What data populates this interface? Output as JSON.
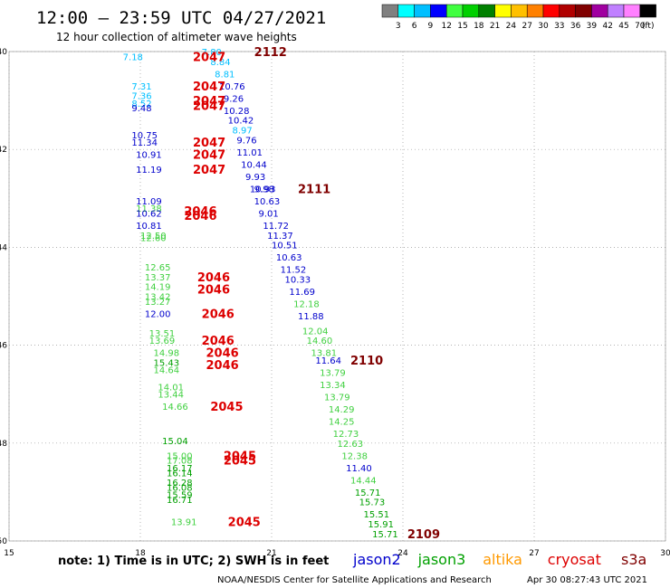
{
  "title": "12:00 — 23:59 UTC 04/27/2021",
  "subtitle": "12 hour collection of altimeter wave heights",
  "colorbar": {
    "colors": [
      "#808080",
      "#00ffff",
      "#00bfff",
      "#0000ff",
      "#40ff40",
      "#00d000",
      "#008000",
      "#ffff00",
      "#ffc000",
      "#ff8000",
      "#ff0000",
      "#b00000",
      "#800000",
      "#a000a0",
      "#c080ff",
      "#ff80ff",
      "#000000"
    ],
    "labels": [
      "3",
      "6",
      "9",
      "12",
      "15",
      "18",
      "21",
      "24",
      "27",
      "30",
      "33",
      "36",
      "39",
      "42",
      "45",
      "70",
      "(ft)"
    ]
  },
  "note": "note: 1) Time is in UTC; 2) SWH is in feet",
  "satellite_legend": [
    {
      "name": "jason2",
      "color": "#0000cc"
    },
    {
      "name": "jason3",
      "color": "#00a000"
    },
    {
      "name": "altika",
      "color": "#ff9900"
    },
    {
      "name": "cryosat",
      "color": "#dd0000"
    },
    {
      "name": "s3a",
      "color": "#800000"
    }
  ],
  "credit": "NOAA/NESDIS Center for Satellite Applications and Research",
  "timestamp": "Apr 30 08:27:43 UTC 2021",
  "chart_data": {
    "type": "scatter",
    "x_ticks": [
      "15",
      "18",
      "21",
      "24",
      "27",
      "30"
    ],
    "y_ticks": [
      "-40",
      "-42",
      "-44",
      "-46",
      "-48",
      "-50"
    ],
    "xlim": [
      15,
      30
    ],
    "ylim": [
      -50,
      -40
    ],
    "swh_points": [
      {
        "lon": 17.6,
        "lat": -40.1,
        "v": "7.18",
        "c": "#00bfff"
      },
      {
        "lon": 19.4,
        "lat": -40.0,
        "v": "7.80",
        "c": "#00bfff"
      },
      {
        "lon": 19.6,
        "lat": -40.2,
        "v": "8.84",
        "c": "#00bfff"
      },
      {
        "lon": 19.7,
        "lat": -40.45,
        "v": "8.81",
        "c": "#00bfff"
      },
      {
        "lon": 17.8,
        "lat": -40.7,
        "v": "7.31",
        "c": "#00bfff"
      },
      {
        "lon": 19.8,
        "lat": -40.7,
        "v": "10.76",
        "c": "#0000cc"
      },
      {
        "lon": 17.8,
        "lat": -40.9,
        "v": "7.36",
        "c": "#00bfff"
      },
      {
        "lon": 19.9,
        "lat": -40.95,
        "v": "9.26",
        "c": "#0000cc"
      },
      {
        "lon": 17.8,
        "lat": -41.05,
        "v": "8.52",
        "c": "#00bfff"
      },
      {
        "lon": 17.8,
        "lat": -41.15,
        "v": "9.48",
        "c": "#0000cc"
      },
      {
        "lon": 19.9,
        "lat": -41.2,
        "v": "10.28",
        "c": "#0000cc"
      },
      {
        "lon": 20.0,
        "lat": -41.4,
        "v": "10.42",
        "c": "#0000cc"
      },
      {
        "lon": 20.1,
        "lat": -41.6,
        "v": "8.97",
        "c": "#00bfff"
      },
      {
        "lon": 17.8,
        "lat": -41.7,
        "v": "10.75",
        "c": "#0000cc"
      },
      {
        "lon": 17.8,
        "lat": -41.85,
        "v": "11.34",
        "c": "#0000cc"
      },
      {
        "lon": 20.2,
        "lat": -41.8,
        "v": "9.76",
        "c": "#0000cc"
      },
      {
        "lon": 20.2,
        "lat": -42.05,
        "v": "11.01",
        "c": "#0000cc"
      },
      {
        "lon": 17.9,
        "lat": -42.1,
        "v": "10.91",
        "c": "#0000cc"
      },
      {
        "lon": 20.3,
        "lat": -42.3,
        "v": "10.44",
        "c": "#0000cc"
      },
      {
        "lon": 17.9,
        "lat": -42.4,
        "v": "11.19",
        "c": "#0000cc"
      },
      {
        "lon": 20.4,
        "lat": -42.55,
        "v": "9.93",
        "c": "#0000cc"
      },
      {
        "lon": 20.5,
        "lat": -42.8,
        "v": "10.93",
        "c": "#0000cc"
      },
      {
        "lon": 20.6,
        "lat": -42.8,
        "v": "9.98",
        "c": "#0000cc"
      },
      {
        "lon": 17.9,
        "lat": -43.05,
        "v": "11.09",
        "c": "#0000cc"
      },
      {
        "lon": 20.6,
        "lat": -43.05,
        "v": "10.63",
        "c": "#0000cc"
      },
      {
        "lon": 17.9,
        "lat": -43.2,
        "v": "11.38",
        "c": "#40d040"
      },
      {
        "lon": 17.9,
        "lat": -43.3,
        "v": "10.62",
        "c": "#0000cc"
      },
      {
        "lon": 20.7,
        "lat": -43.3,
        "v": "9.01",
        "c": "#0000cc"
      },
      {
        "lon": 17.9,
        "lat": -43.55,
        "v": "10.81",
        "c": "#0000cc"
      },
      {
        "lon": 20.8,
        "lat": -43.55,
        "v": "11.72",
        "c": "#0000cc"
      },
      {
        "lon": 18.0,
        "lat": -43.75,
        "v": "12.50",
        "c": "#40d040"
      },
      {
        "lon": 18.0,
        "lat": -43.8,
        "v": "12.60",
        "c": "#40d040"
      },
      {
        "lon": 20.9,
        "lat": -43.75,
        "v": "11.37",
        "c": "#0000cc"
      },
      {
        "lon": 21.0,
        "lat": -43.95,
        "v": "10.51",
        "c": "#0000cc"
      },
      {
        "lon": 21.1,
        "lat": -44.2,
        "v": "10.63",
        "c": "#0000cc"
      },
      {
        "lon": 18.1,
        "lat": -44.4,
        "v": "12.65",
        "c": "#40d040"
      },
      {
        "lon": 21.2,
        "lat": -44.45,
        "v": "11.52",
        "c": "#0000cc"
      },
      {
        "lon": 18.1,
        "lat": -44.6,
        "v": "13.37",
        "c": "#40d040"
      },
      {
        "lon": 21.3,
        "lat": -44.65,
        "v": "10.33",
        "c": "#0000cc"
      },
      {
        "lon": 18.1,
        "lat": -44.8,
        "v": "14.19",
        "c": "#40d040"
      },
      {
        "lon": 21.4,
        "lat": -44.9,
        "v": "11.69",
        "c": "#0000cc"
      },
      {
        "lon": 18.1,
        "lat": -45.0,
        "v": "13.42",
        "c": "#40d040"
      },
      {
        "lon": 18.1,
        "lat": -45.1,
        "v": "13.27",
        "c": "#40d040"
      },
      {
        "lon": 21.5,
        "lat": -45.15,
        "v": "12.18",
        "c": "#40d040"
      },
      {
        "lon": 18.1,
        "lat": -45.35,
        "v": "12.00",
        "c": "#0000cc"
      },
      {
        "lon": 21.6,
        "lat": -45.4,
        "v": "11.88",
        "c": "#0000cc"
      },
      {
        "lon": 21.7,
        "lat": -45.7,
        "v": "12.04",
        "c": "#40d040"
      },
      {
        "lon": 18.2,
        "lat": -45.75,
        "v": "13.51",
        "c": "#40d040"
      },
      {
        "lon": 18.2,
        "lat": -45.9,
        "v": "13.69",
        "c": "#40d040"
      },
      {
        "lon": 21.8,
        "lat": -45.9,
        "v": "14.60",
        "c": "#40d040"
      },
      {
        "lon": 18.3,
        "lat": -46.15,
        "v": "14.98",
        "c": "#40d040"
      },
      {
        "lon": 21.9,
        "lat": -46.15,
        "v": "13.81",
        "c": "#40d040"
      },
      {
        "lon": 18.3,
        "lat": -46.35,
        "v": "15.43",
        "c": "#00a000"
      },
      {
        "lon": 22.0,
        "lat": -46.3,
        "v": "11.64",
        "c": "#0000cc"
      },
      {
        "lon": 18.3,
        "lat": -46.5,
        "v": "14.64",
        "c": "#40d040"
      },
      {
        "lon": 22.1,
        "lat": -46.55,
        "v": "13.79",
        "c": "#40d040"
      },
      {
        "lon": 22.1,
        "lat": -46.8,
        "v": "13.34",
        "c": "#40d040"
      },
      {
        "lon": 18.4,
        "lat": -46.85,
        "v": "14.01",
        "c": "#40d040"
      },
      {
        "lon": 18.4,
        "lat": -47.0,
        "v": "13.44",
        "c": "#40d040"
      },
      {
        "lon": 22.2,
        "lat": -47.05,
        "v": "13.79",
        "c": "#40d040"
      },
      {
        "lon": 18.5,
        "lat": -47.25,
        "v": "14.66",
        "c": "#40d040"
      },
      {
        "lon": 22.3,
        "lat": -47.3,
        "v": "14.29",
        "c": "#40d040"
      },
      {
        "lon": 22.3,
        "lat": -47.55,
        "v": "14.25",
        "c": "#40d040"
      },
      {
        "lon": 22.4,
        "lat": -47.8,
        "v": "12.73",
        "c": "#40d040"
      },
      {
        "lon": 18.5,
        "lat": -47.95,
        "v": "15.04",
        "c": "#00a000"
      },
      {
        "lon": 22.5,
        "lat": -48.0,
        "v": "12.63",
        "c": "#40d040"
      },
      {
        "lon": 18.6,
        "lat": -48.25,
        "v": "15.00",
        "c": "#40d040"
      },
      {
        "lon": 22.6,
        "lat": -48.25,
        "v": "12.38",
        "c": "#40d040"
      },
      {
        "lon": 18.6,
        "lat": -48.35,
        "v": "17.08",
        "c": "#40d040"
      },
      {
        "lon": 18.6,
        "lat": -48.5,
        "v": "16.17",
        "c": "#00a000"
      },
      {
        "lon": 22.7,
        "lat": -48.5,
        "v": "11.40",
        "c": "#0000cc"
      },
      {
        "lon": 18.6,
        "lat": -48.6,
        "v": "16.14",
        "c": "#00a000"
      },
      {
        "lon": 22.8,
        "lat": -48.75,
        "v": "14.44",
        "c": "#40d040"
      },
      {
        "lon": 18.6,
        "lat": -48.8,
        "v": "16.28",
        "c": "#00a000"
      },
      {
        "lon": 18.6,
        "lat": -48.9,
        "v": "16.08",
        "c": "#00a000"
      },
      {
        "lon": 22.9,
        "lat": -49.0,
        "v": "15.71",
        "c": "#00a000"
      },
      {
        "lon": 18.6,
        "lat": -49.05,
        "v": "15.59",
        "c": "#00a000"
      },
      {
        "lon": 18.6,
        "lat": -49.15,
        "v": "16.71",
        "c": "#00a000"
      },
      {
        "lon": 23.0,
        "lat": -49.2,
        "v": "15.73",
        "c": "#00a000"
      },
      {
        "lon": 23.1,
        "lat": -49.45,
        "v": "15.51",
        "c": "#00a000"
      },
      {
        "lon": 18.7,
        "lat": -49.6,
        "v": "13.91",
        "c": "#40d040"
      },
      {
        "lon": 23.2,
        "lat": -49.65,
        "v": "15.91",
        "c": "#00a000"
      },
      {
        "lon": 23.3,
        "lat": -49.85,
        "v": "15.71",
        "c": "#00a000"
      }
    ],
    "time_labels": [
      {
        "lon": 19.2,
        "lat": -40.1,
        "v": "2047",
        "c": "#dd0000"
      },
      {
        "lon": 20.6,
        "lat": -40.0,
        "v": "2112",
        "c": "#800000"
      },
      {
        "lon": 19.2,
        "lat": -40.7,
        "v": "2047",
        "c": "#dd0000"
      },
      {
        "lon": 19.2,
        "lat": -41.0,
        "v": "2047",
        "c": "#dd0000"
      },
      {
        "lon": 19.2,
        "lat": -41.1,
        "v": "2047",
        "c": "#dd0000"
      },
      {
        "lon": 19.2,
        "lat": -41.85,
        "v": "2047",
        "c": "#dd0000"
      },
      {
        "lon": 19.2,
        "lat": -42.1,
        "v": "2047",
        "c": "#dd0000"
      },
      {
        "lon": 19.2,
        "lat": -42.4,
        "v": "2047",
        "c": "#dd0000"
      },
      {
        "lon": 21.6,
        "lat": -42.8,
        "v": "2111",
        "c": "#800000"
      },
      {
        "lon": 19.0,
        "lat": -43.25,
        "v": "2046",
        "c": "#dd0000"
      },
      {
        "lon": 19.0,
        "lat": -43.35,
        "v": "2046",
        "c": "#dd0000"
      },
      {
        "lon": 19.3,
        "lat": -44.6,
        "v": "2046",
        "c": "#dd0000"
      },
      {
        "lon": 19.3,
        "lat": -44.85,
        "v": "2046",
        "c": "#dd0000"
      },
      {
        "lon": 19.4,
        "lat": -45.35,
        "v": "2046",
        "c": "#dd0000"
      },
      {
        "lon": 19.4,
        "lat": -45.9,
        "v": "2046",
        "c": "#dd0000"
      },
      {
        "lon": 19.5,
        "lat": -46.15,
        "v": "2046",
        "c": "#dd0000"
      },
      {
        "lon": 19.5,
        "lat": -46.4,
        "v": "2046",
        "c": "#dd0000"
      },
      {
        "lon": 22.8,
        "lat": -46.3,
        "v": "2110",
        "c": "#800000"
      },
      {
        "lon": 19.6,
        "lat": -47.25,
        "v": "2045",
        "c": "#dd0000"
      },
      {
        "lon": 19.9,
        "lat": -48.25,
        "v": "2045",
        "c": "#dd0000"
      },
      {
        "lon": 19.9,
        "lat": -48.35,
        "v": "2045",
        "c": "#dd0000"
      },
      {
        "lon": 20.0,
        "lat": -49.6,
        "v": "2045",
        "c": "#dd0000"
      },
      {
        "lon": 24.1,
        "lat": -49.85,
        "v": "2109",
        "c": "#800000"
      }
    ]
  }
}
